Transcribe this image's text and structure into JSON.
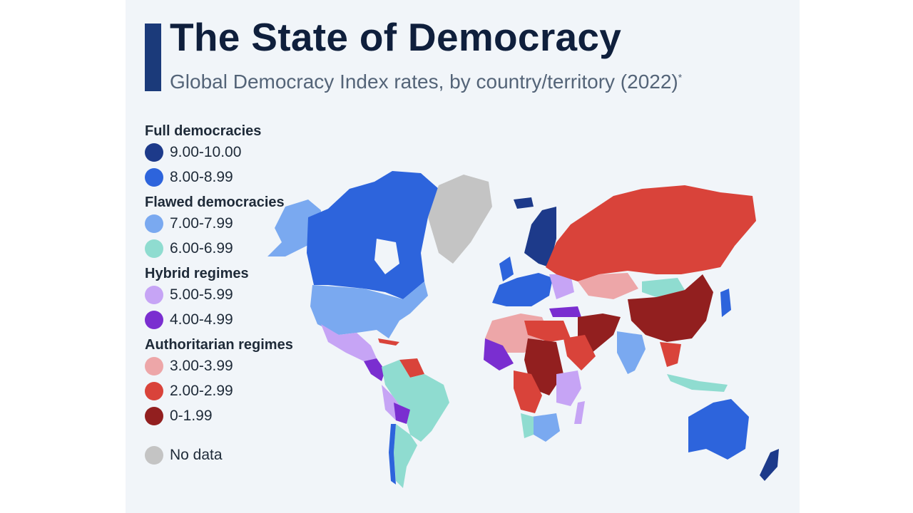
{
  "header": {
    "title": "The State of Democracy",
    "subtitle": "Global Democracy Index rates, by country/territory (2022)",
    "subtitle_mark": "*"
  },
  "colors": {
    "accent": "#1b3a7a",
    "full_9_10": "#1d3a8a",
    "full_8_9": "#2d64dc",
    "flawed_7_8": "#7aa9f0",
    "flawed_6_7": "#8fdcd0",
    "hybrid_5_6": "#c6a4f5",
    "hybrid_4_5": "#7a2ed0",
    "auth_3_4": "#eda6a8",
    "auth_2_3": "#d9433a",
    "auth_0_2": "#921f1f",
    "no_data": "#c4c4c4"
  },
  "legend": {
    "groups": [
      {
        "title": "Full democracies",
        "items": [
          {
            "label": "9.00-10.00",
            "color": "#1d3a8a"
          },
          {
            "label": "8.00-8.99",
            "color": "#2d64dc"
          }
        ]
      },
      {
        "title": "Flawed democracies",
        "items": [
          {
            "label": "7.00-7.99",
            "color": "#7aa9f0"
          },
          {
            "label": "6.00-6.99",
            "color": "#8fdcd0"
          }
        ]
      },
      {
        "title": "Hybrid regimes",
        "items": [
          {
            "label": "5.00-5.99",
            "color": "#c6a4f5"
          },
          {
            "label": "4.00-4.99",
            "color": "#7a2ed0"
          }
        ]
      },
      {
        "title": "Authoritarian regimes",
        "items": [
          {
            "label": "3.00-3.99",
            "color": "#eda6a8"
          },
          {
            "label": "2.00-2.99",
            "color": "#d9433a"
          },
          {
            "label": "0-1.99",
            "color": "#921f1f"
          }
        ]
      }
    ],
    "no_data": {
      "label": "No data",
      "color": "#c4c4c4"
    }
  }
}
